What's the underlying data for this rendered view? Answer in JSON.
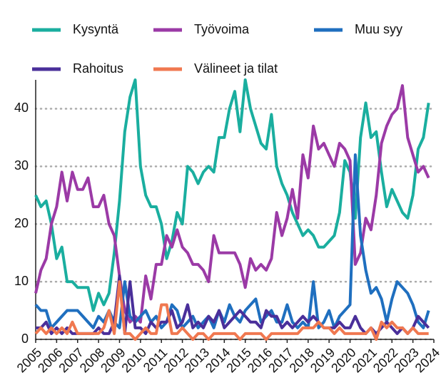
{
  "chart_data": {
    "type": "line",
    "x": [
      2005,
      2005.25,
      2005.5,
      2005.75,
      2006,
      2006.25,
      2006.5,
      2006.75,
      2007,
      2007.25,
      2007.5,
      2007.75,
      2008,
      2008.25,
      2008.5,
      2008.75,
      2009,
      2009.25,
      2009.5,
      2009.75,
      2010,
      2010.25,
      2010.5,
      2010.75,
      2011,
      2011.25,
      2011.5,
      2011.75,
      2012,
      2012.25,
      2012.5,
      2012.75,
      2013,
      2013.25,
      2013.5,
      2013.75,
      2014,
      2014.25,
      2014.5,
      2014.75,
      2015,
      2015.25,
      2015.5,
      2015.75,
      2016,
      2016.25,
      2016.5,
      2016.75,
      2017,
      2017.25,
      2017.5,
      2017.75,
      2018,
      2018.25,
      2018.5,
      2018.75,
      2019,
      2019.25,
      2019.5,
      2019.75,
      2020,
      2020.25,
      2020.5,
      2020.75,
      2021,
      2021.25,
      2021.5,
      2021.75,
      2022,
      2022.25,
      2022.5,
      2022.75,
      2023,
      2023.25,
      2023.5,
      2023.75
    ],
    "series": [
      {
        "name": "Kysyntä",
        "color": "#1aae9f",
        "values": [
          25,
          23,
          24,
          20,
          14,
          16,
          10,
          10,
          9,
          9,
          9,
          5,
          8,
          6,
          8,
          15,
          24,
          36,
          42,
          45,
          30,
          25,
          23,
          23,
          20,
          14,
          17,
          22,
          20,
          30,
          29,
          27,
          29,
          30,
          29,
          35,
          35,
          40,
          43,
          36,
          45,
          40,
          37,
          34,
          33,
          39,
          30,
          27,
          25,
          22,
          20,
          18,
          19,
          18,
          16,
          16,
          17,
          18,
          22,
          31,
          29,
          21,
          35,
          41,
          35,
          36,
          29,
          23,
          26,
          24,
          22,
          21,
          25,
          33,
          35,
          41
        ]
      },
      {
        "name": "Työvoima",
        "color": "#9b3aa6",
        "values": [
          8,
          12,
          14,
          20,
          23,
          29,
          24,
          29,
          26,
          26,
          28,
          23,
          23,
          25,
          20,
          18,
          11,
          5,
          3,
          4,
          3,
          11,
          7,
          13,
          13,
          18,
          16,
          19,
          16,
          15,
          13,
          13,
          12,
          10,
          18,
          15,
          15,
          15,
          15,
          13,
          9,
          14,
          12,
          13,
          12,
          14,
          22,
          18,
          21,
          26,
          21,
          32,
          28,
          37,
          33,
          34,
          32,
          30,
          34,
          33,
          31,
          13,
          15,
          21,
          19,
          25,
          34,
          37,
          39,
          40,
          44,
          35,
          32,
          29,
          30,
          28
        ]
      },
      {
        "name": "Muu syy",
        "color": "#1f6fbf",
        "values": [
          6,
          5,
          5,
          2,
          3,
          4,
          5,
          5,
          5,
          4,
          3,
          2,
          4,
          3,
          5,
          3,
          2,
          10,
          4,
          3,
          4,
          5,
          3,
          4,
          2,
          3,
          6,
          5,
          2,
          3,
          4,
          2,
          3,
          4,
          2,
          5,
          3,
          6,
          4,
          3,
          5,
          6,
          7,
          3,
          4,
          5,
          3,
          3,
          6,
          3,
          2,
          3,
          2,
          10,
          2,
          3,
          5,
          2,
          4,
          5,
          6,
          32,
          18,
          12,
          8,
          9,
          7,
          3,
          7,
          10,
          9,
          8,
          6,
          3,
          2,
          5
        ]
      },
      {
        "name": "Rahoitus",
        "color": "#4a2f9a",
        "values": [
          2,
          2,
          3,
          1,
          2,
          1,
          2,
          1,
          1,
          1,
          1,
          1,
          2,
          1,
          1,
          3,
          11,
          1,
          10,
          2,
          2,
          1,
          3,
          2,
          3,
          3,
          5,
          2,
          3,
          6,
          2,
          3,
          2,
          4,
          3,
          5,
          2,
          3,
          4,
          5,
          4,
          3,
          3,
          2,
          5,
          4,
          4,
          2,
          3,
          2,
          3,
          4,
          3,
          4,
          3,
          2,
          2,
          2,
          3,
          2,
          2,
          4,
          2,
          1,
          2,
          1,
          2,
          3,
          2,
          1,
          2,
          1,
          2,
          4,
          3,
          2
        ]
      },
      {
        "name": "Välineet ja tilat",
        "color": "#f07850",
        "values": [
          1,
          2,
          1,
          2,
          1,
          2,
          1,
          3,
          1,
          1,
          1,
          1,
          1,
          2,
          5,
          1,
          10,
          1,
          1,
          0,
          1,
          2,
          1,
          1,
          6,
          6,
          1,
          1,
          2,
          1,
          0,
          1,
          1,
          0,
          1,
          1,
          1,
          1,
          1,
          0,
          1,
          1,
          1,
          1,
          0,
          1,
          1,
          1,
          1,
          1,
          1,
          2,
          2,
          2,
          3,
          2,
          2,
          1,
          2,
          1,
          1,
          1,
          1,
          1,
          2,
          0,
          3,
          2,
          3,
          2,
          2,
          1,
          2,
          1,
          1,
          1
        ]
      }
    ],
    "xlim": [
      2005,
      2024
    ],
    "xticks": [
      2005,
      2006,
      2007,
      2008,
      2009,
      2010,
      2011,
      2012,
      2013,
      2014,
      2015,
      2016,
      2017,
      2018,
      2019,
      2020,
      2021,
      2022,
      2023,
      2024
    ],
    "ylim": [
      0,
      45
    ],
    "yticks": [
      0,
      10,
      20,
      30,
      40
    ],
    "grid": true
  }
}
